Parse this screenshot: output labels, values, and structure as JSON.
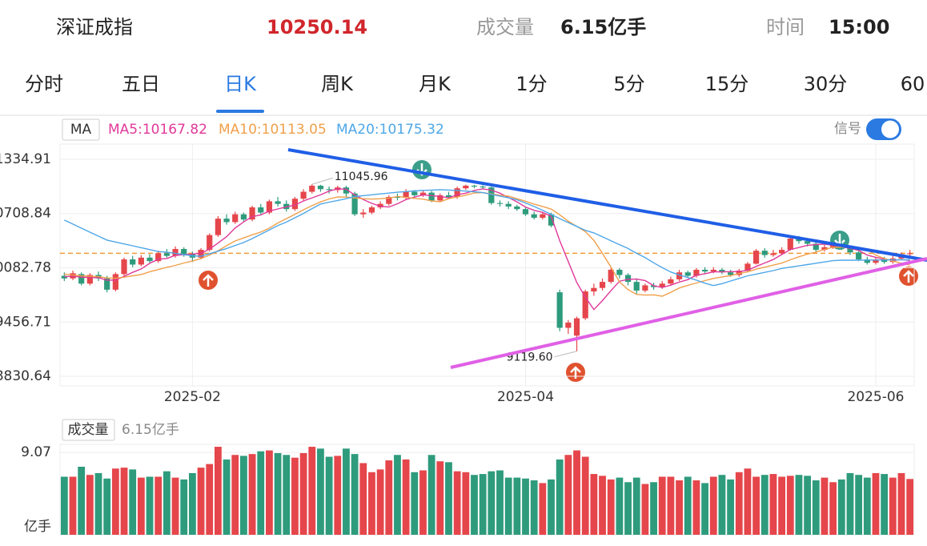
{
  "header": {
    "name": "深证成指",
    "volume_label": "成交量",
    "volume": "6.15亿手",
    "time_label": "时间",
    "time": "15:00"
  },
  "tabs": [
    "分时",
    "五日",
    "日K",
    "周K",
    "月K",
    "1分",
    "5分",
    "15分",
    "30分",
    "60"
  ],
  "active_tab": 2,
  "signal_label": "信号",
  "signal_on": true,
  "chart_data": [
    {
      "type": "candlestick",
      "indicator": "MA",
      "categories": [
        null,
        null,
        null,
        null,
        null,
        null,
        null,
        null,
        null,
        null,
        null,
        null,
        null,
        null,
        null,
        "2025-02",
        null,
        null,
        null,
        null,
        null,
        null,
        null,
        null,
        null,
        null,
        null,
        null,
        null,
        null,
        null,
        null,
        null,
        null,
        null,
        null,
        null,
        null,
        null,
        null,
        null,
        null,
        null,
        null,
        null,
        null,
        null,
        null,
        null,
        null,
        null,
        null,
        null,
        null,
        "2025-04",
        null,
        null,
        null,
        null,
        null,
        null,
        null,
        null,
        null,
        null,
        null,
        null,
        null,
        null,
        null,
        null,
        null,
        null,
        null,
        null,
        null,
        null,
        null,
        null,
        null,
        null,
        null,
        null,
        null,
        null,
        null,
        null,
        null,
        null,
        null,
        null,
        null,
        null,
        null,
        null,
        "2025-06",
        null,
        null,
        null,
        null
      ],
      "open": [
        9990,
        9960,
        10010,
        9900,
        10000,
        9960,
        9830,
        10010,
        10180,
        10120,
        10200,
        10160,
        10250,
        10220,
        10300,
        10240,
        10200,
        10290,
        10460,
        10650,
        10610,
        10700,
        10640,
        10780,
        10720,
        10850,
        10820,
        10760,
        10880,
        10960,
        11030,
        10990,
        10980,
        11010,
        10940,
        10700,
        10720,
        10780,
        10820,
        10900,
        10890,
        10960,
        10920,
        10950,
        10860,
        10920,
        10900,
        11000,
        11030,
        11020,
        11010,
        10830,
        10820,
        10790,
        10760,
        10700,
        10660,
        10700,
        9800,
        9390,
        9300,
        9500,
        9810,
        9850,
        9920,
        10060,
        10000,
        9920,
        9820,
        9880,
        9860,
        9900,
        9950,
        10030,
        9990,
        10060,
        10040,
        10060,
        10030,
        10000,
        10050,
        10130,
        10280,
        10230,
        10250,
        10290,
        10420,
        10390,
        10360,
        10290,
        10320,
        10350,
        10310,
        10260,
        10180,
        10140,
        10180,
        10150,
        10190,
        10240
      ],
      "high": [
        10030,
        10050,
        10030,
        10020,
        10040,
        9990,
        10030,
        10200,
        10220,
        10230,
        10240,
        10280,
        10300,
        10330,
        10320,
        10270,
        10310,
        10480,
        10680,
        10700,
        10730,
        10720,
        10800,
        10820,
        10870,
        10900,
        10860,
        10900,
        10990,
        11045.96,
        11040,
        11020,
        11030,
        11030,
        10960,
        10760,
        10800,
        10850,
        10920,
        10940,
        10990,
        10980,
        10970,
        10970,
        10940,
        10960,
        11020,
        11042,
        11040,
        11035,
        11020,
        10860,
        10850,
        10810,
        10780,
        10730,
        10720,
        10720,
        9830,
        9480,
        9520,
        9830,
        9900,
        9960,
        10080,
        10080,
        10020,
        9960,
        9900,
        9910,
        9930,
        9980,
        10060,
        10050,
        10080,
        10090,
        10090,
        10080,
        10060,
        10070,
        10150,
        10300,
        10310,
        10290,
        10320,
        10450,
        10450,
        10420,
        10380,
        10350,
        10370,
        10380,
        10330,
        10280,
        10210,
        10200,
        10210,
        10220,
        10260,
        10290
      ],
      "low": [
        9930,
        9940,
        9880,
        9880,
        9930,
        9800,
        9810,
        9990,
        10090,
        10100,
        10140,
        10140,
        10200,
        10200,
        10210,
        10150,
        10180,
        10270,
        10440,
        10580,
        10590,
        10610,
        10620,
        10700,
        10700,
        10790,
        10730,
        10740,
        10860,
        10940,
        10960,
        10940,
        10950,
        10900,
        10680,
        10660,
        10700,
        10760,
        10800,
        10860,
        10870,
        10900,
        10900,
        10840,
        10840,
        10880,
        10880,
        10980,
        11000,
        10990,
        10810,
        10790,
        10760,
        10740,
        10680,
        10640,
        10640,
        10550,
        9350,
        9320,
        9119.6,
        9480,
        9760,
        9820,
        9900,
        9960,
        9880,
        9780,
        9800,
        9830,
        9840,
        9880,
        9930,
        9970,
        9970,
        10010,
        10020,
        10010,
        9980,
        9980,
        10040,
        10120,
        10200,
        10210,
        10230,
        10280,
        10360,
        10330,
        10270,
        10270,
        10300,
        10290,
        10230,
        10160,
        10120,
        10120,
        10130,
        10130,
        10170,
        10220
      ],
      "close": [
        9960,
        10020,
        9900,
        10000,
        9960,
        9830,
        10010,
        10180,
        10120,
        10200,
        10160,
        10250,
        10220,
        10300,
        10240,
        10200,
        10290,
        10460,
        10650,
        10610,
        10700,
        10640,
        10780,
        10720,
        10850,
        10820,
        10760,
        10880,
        10960,
        11030,
        10990,
        10980,
        11010,
        10940,
        10700,
        10720,
        10780,
        10820,
        10900,
        10890,
        10960,
        10920,
        10950,
        10860,
        10920,
        10900,
        11000,
        11030,
        11020,
        11010,
        10830,
        10820,
        10790,
        10760,
        10700,
        10660,
        10700,
        10570,
        9390,
        9450,
        9500,
        9810,
        9850,
        9920,
        10060,
        10000,
        9920,
        9820,
        9880,
        9860,
        9900,
        9950,
        10030,
        9990,
        10060,
        10040,
        10060,
        10030,
        10000,
        10050,
        10130,
        10280,
        10230,
        10250,
        10290,
        10420,
        10390,
        10360,
        10290,
        10320,
        10350,
        10310,
        10260,
        10180,
        10140,
        10180,
        10150,
        10190,
        10240,
        10250.14
      ],
      "up_color": "#e5464b",
      "down_color": "#2e9b7c",
      "series": [
        {
          "name": "MA5:10167.82",
          "color": "#e0399a",
          "values": [
            9980,
            9985,
            9975,
            9970,
            9968,
            9940,
            9940,
            9985,
            10030,
            10070,
            10134,
            10182,
            10190,
            10226,
            10234,
            10242,
            10250,
            10298,
            10368,
            10442,
            10542,
            10612,
            10674,
            10692,
            10738,
            10762,
            10786,
            10806,
            10854,
            10890,
            10924,
            10968,
            10994,
            10990,
            10924,
            10870,
            10826,
            10792,
            10784,
            10822,
            10870,
            10898,
            10924,
            10916,
            10906,
            10890,
            10926,
            10944,
            10976,
            10994,
            10980,
            10944,
            10894,
            10844,
            10784,
            10746,
            10722,
            10678,
            10396,
            10154,
            9914,
            9744,
            9600,
            9704,
            9818,
            9928,
            9950,
            9952,
            9936,
            9876,
            9856,
            9882,
            9918,
            9946,
            9998,
            10014,
            10036,
            10036,
            10038,
            10038,
            10054,
            10098,
            10138,
            10178,
            10236,
            10294,
            10316,
            10342,
            10350,
            10356,
            10342,
            10326,
            10306,
            10284,
            10230,
            10204,
            10182,
            10168,
            10178,
            10167.82
          ]
        },
        {
          "name": "MA10:10113.05",
          "color": "#f0a04b",
          "values": [
            10010,
            10000,
            9990,
            9985,
            9980,
            9965,
            9962,
            9975,
            9990,
            10005,
            10037,
            10062,
            10088,
            10110,
            10138,
            10160,
            10190,
            10230,
            10280,
            10338,
            10392,
            10427,
            10463,
            10495,
            10540,
            10600,
            10650,
            10700,
            10752,
            10800,
            10843,
            10877,
            10900,
            10898,
            10889,
            10880,
            10875,
            10880,
            10887,
            10906,
            10897,
            10884,
            10875,
            10854,
            10845,
            10880,
            10900,
            10921,
            10946,
            10950,
            10935,
            10920,
            10910,
            10880,
            10850,
            10818,
            10790,
            10760,
            10694,
            10620,
            10560,
            10500,
            10400,
            10250,
            10090,
            9920,
            9830,
            9776,
            9768,
            9770,
            9755,
            9800,
            9850,
            9880,
            9907,
            9935,
            9960,
            9977,
            9992,
            10017,
            10035,
            10067,
            10090,
            10113,
            10137,
            10175,
            10210,
            10240,
            10264,
            10295,
            10318,
            10320,
            10321,
            10310,
            10295,
            10230,
            10190,
            10160,
            10135,
            10113.05
          ]
        },
        {
          "name": "MA20:10175.32",
          "color": "#4ea7e8",
          "values": [
            10633,
            10587,
            10540,
            10494,
            10448,
            10402,
            10380,
            10358,
            10337,
            10315,
            10293,
            10270,
            10263,
            10250,
            10235,
            10220,
            10217,
            10245,
            10275,
            10305,
            10340,
            10375,
            10420,
            10470,
            10520,
            10570,
            10610,
            10660,
            10710,
            10765,
            10818,
            10840,
            10860,
            10880,
            10905,
            10915,
            10925,
            10935,
            10945,
            10955,
            10962,
            10970,
            10976,
            10980,
            10984,
            10980,
            10975,
            10968,
            10960,
            10950,
            10930,
            10910,
            10890,
            10868,
            10830,
            10790,
            10745,
            10700,
            10650,
            10605,
            10560,
            10515,
            10485,
            10440,
            10395,
            10350,
            10305,
            10250,
            10200,
            10140,
            10085,
            10035,
            10000,
            9970,
            9940,
            9905,
            9878,
            9900,
            9930,
            9960,
            9990,
            10010,
            10030,
            10050,
            10075,
            10090,
            10105,
            10120,
            10135,
            10150,
            10165,
            10170,
            10170,
            10170,
            10172,
            10172,
            10173,
            10174,
            10175,
            10175.32
          ]
        }
      ],
      "ylim": [
        8720,
        11510
      ],
      "yticks": [
        8830.64,
        9456.71,
        10082.78,
        10708.84,
        11334.91
      ],
      "grid": true,
      "last_price_line": true,
      "last_price_color": "#f29b38",
      "low_label": "9119.60"
    },
    {
      "type": "bar",
      "title": "成交量",
      "subtitle": "6.15亿手",
      "y_label": "亿手",
      "values": [
        6.4,
        6.4,
        7.5,
        6.6,
        6.8,
        6.2,
        7.3,
        7.4,
        7.2,
        6.3,
        6.4,
        6.4,
        7.0,
        6.3,
        6.1,
        6.8,
        7.4,
        7.8,
        9.7,
        8.3,
        8.8,
        8.7,
        8.9,
        9.2,
        9.3,
        9.0,
        8.8,
        8.5,
        9.0,
        9.7,
        9.5,
        8.6,
        8.7,
        9.5,
        8.9,
        7.9,
        6.9,
        7.2,
        8.2,
        8.8,
        8.3,
        6.9,
        7.1,
        8.8,
        8.1,
        8.0,
        7.0,
        6.9,
        6.6,
        6.7,
        7.0,
        7.1,
        6.3,
        6.3,
        6.2,
        6.0,
        5.7,
        6.1,
        8.3,
        8.8,
        9.3,
        8.6,
        6.7,
        6.5,
        6.1,
        6.3,
        5.8,
        6.3,
        5.6,
        5.8,
        6.4,
        6.4,
        6.0,
        6.4,
        6.0,
        5.7,
        6.4,
        6.6,
        6.1,
        6.9,
        7.3,
        6.4,
        6.6,
        6.7,
        6.4,
        6.5,
        6.6,
        6.5,
        6.0,
        6.3,
        5.8,
        6.1,
        6.8,
        6.6,
        6.3,
        6.8,
        6.7,
        6.3,
        6.8,
        6.15
      ],
      "ylim": [
        0,
        9.97
      ],
      "yticks": [
        9.07
      ]
    }
  ]
}
